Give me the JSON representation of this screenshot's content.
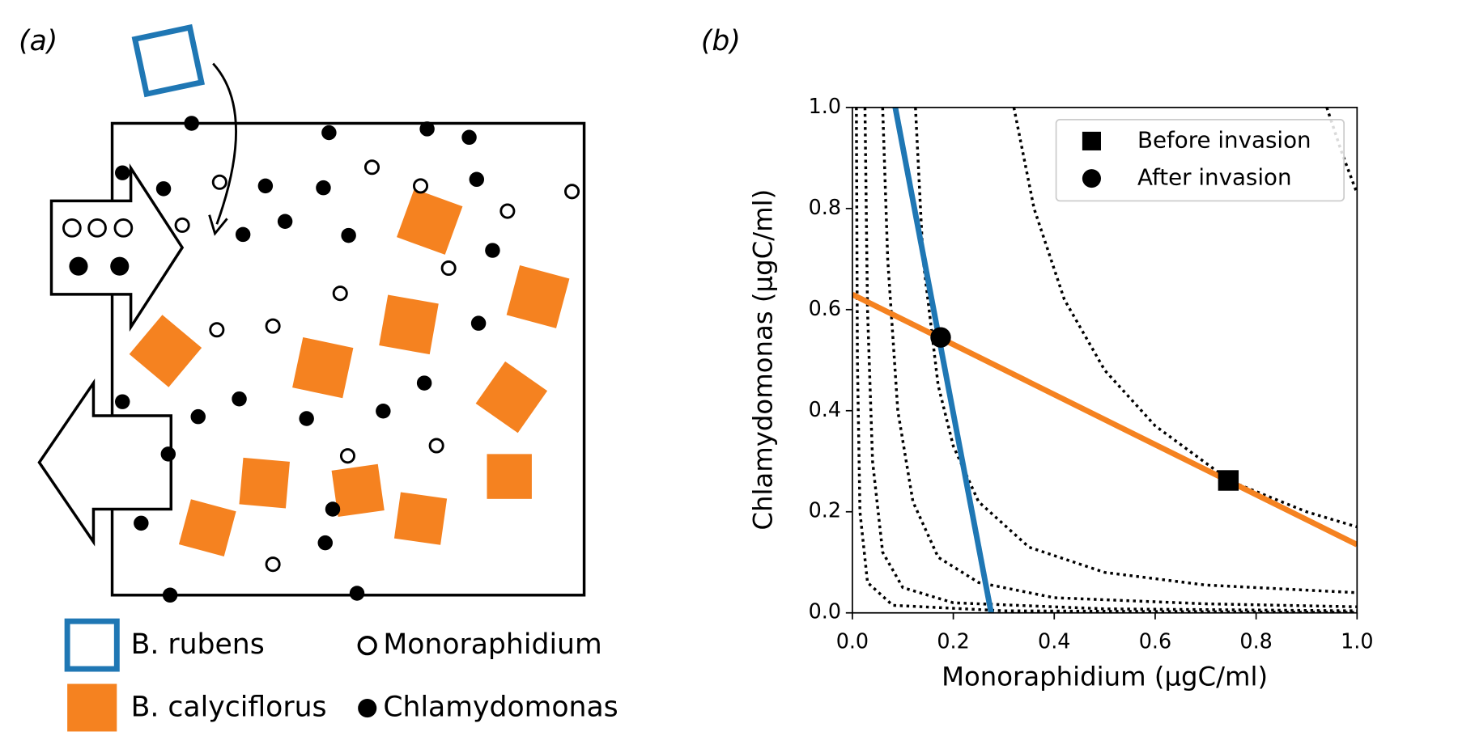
{
  "panel_a": {
    "label": "(a)",
    "legend": [
      "B. rubens",
      "B. calyciflorus",
      "Monoraphidium",
      "Chlamydomonas"
    ]
  },
  "chart_data": {
    "type": "line",
    "label": "(b)",
    "xlabel": "Monoraphidium (μgC/ml)",
    "ylabel": "Chlamydomonas (μgC/ml)",
    "xlim": [
      0,
      1
    ],
    "ylim": [
      0,
      1
    ],
    "xticks": [
      {
        "value": 0,
        "label": "0.0"
      },
      0.2,
      0.4,
      0.6,
      0.8,
      {
        "value": 1,
        "label": "1.0"
      }
    ],
    "yticks": [
      {
        "value": 0,
        "label": "0.0"
      },
      0.2,
      0.4,
      0.6,
      0.8,
      {
        "value": 1,
        "label": "1.0"
      }
    ],
    "series": [
      {
        "color": "#1f77b4",
        "x": [
          0.085,
          0.275
        ],
        "values": [
          1,
          0
        ]
      },
      {
        "color": "#f58220",
        "x": [
          0,
          1
        ],
        "values": [
          0.63,
          0.135
        ]
      }
    ],
    "curves": [
      {
        "x": [
          0.94,
          0.97,
          1.0
        ],
        "values": [
          1.0,
          0.91,
          0.83
        ]
      },
      {
        "x": [
          0.32,
          0.36,
          0.42,
          0.5,
          0.6,
          0.75,
          0.9,
          1.0
        ],
        "values": [
          1.0,
          0.8,
          0.62,
          0.48,
          0.37,
          0.26,
          0.2,
          0.17
        ]
      },
      {
        "x": [
          0.125,
          0.14,
          0.17,
          0.2,
          0.25,
          0.35,
          0.5,
          0.7,
          1.0
        ],
        "values": [
          1.0,
          0.7,
          0.45,
          0.33,
          0.22,
          0.13,
          0.08,
          0.055,
          0.04
        ]
      },
      {
        "x": [
          0.06,
          0.07,
          0.09,
          0.12,
          0.17,
          0.25,
          0.4,
          0.7,
          1.0
        ],
        "values": [
          1.0,
          0.7,
          0.4,
          0.22,
          0.11,
          0.06,
          0.03,
          0.018,
          0.012
        ]
      },
      {
        "x": [
          0.025,
          0.03,
          0.04,
          0.06,
          0.1,
          0.2,
          0.5,
          1.0
        ],
        "values": [
          1.0,
          0.6,
          0.3,
          0.12,
          0.05,
          0.02,
          0.008,
          0.004
        ]
      },
      {
        "x": [
          0.008,
          0.01,
          0.015,
          0.03,
          0.08,
          0.3,
          1.0
        ],
        "values": [
          1.0,
          0.5,
          0.2,
          0.06,
          0.015,
          0.004,
          0.001
        ]
      }
    ],
    "points": [
      {
        "name": "Before invasion",
        "marker": "square",
        "x": 0.745,
        "y": 0.262
      },
      {
        "name": "After invasion",
        "marker": "circle",
        "x": 0.175,
        "y": 0.545
      }
    ],
    "legend": "upper right"
  }
}
